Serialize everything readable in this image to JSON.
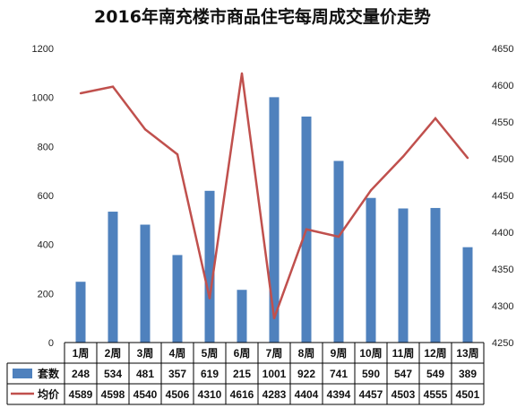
{
  "chart_data": {
    "type": "bar",
    "title": "2016年南充楼市商品住宅每周成交量价走势",
    "categories": [
      "1周",
      "2周",
      "3周",
      "4周",
      "5周",
      "6周",
      "7周",
      "8周",
      "9周",
      "10周",
      "11周",
      "12周",
      "13周"
    ],
    "series": [
      {
        "name": "套数",
        "type": "bar",
        "axis": "left",
        "color": "#4f81bd",
        "values": [
          248,
          534,
          481,
          357,
          619,
          215,
          1001,
          922,
          741,
          590,
          547,
          549,
          389
        ]
      },
      {
        "name": "均价",
        "type": "line",
        "axis": "right",
        "color": "#c0504d",
        "values": [
          4589,
          4598,
          4540,
          4506,
          4310,
          4616,
          4283,
          4404,
          4394,
          4457,
          4503,
          4555,
          4501
        ]
      }
    ],
    "y_left": {
      "min": 0,
      "max": 1200,
      "ticks": [
        0,
        200,
        400,
        600,
        800,
        1000,
        1200
      ]
    },
    "y_right": {
      "min": 4250,
      "max": 4650,
      "ticks": [
        4250,
        4300,
        4350,
        4400,
        4450,
        4500,
        4550,
        4600,
        4650
      ]
    },
    "grid": false,
    "legend": "data-table"
  }
}
